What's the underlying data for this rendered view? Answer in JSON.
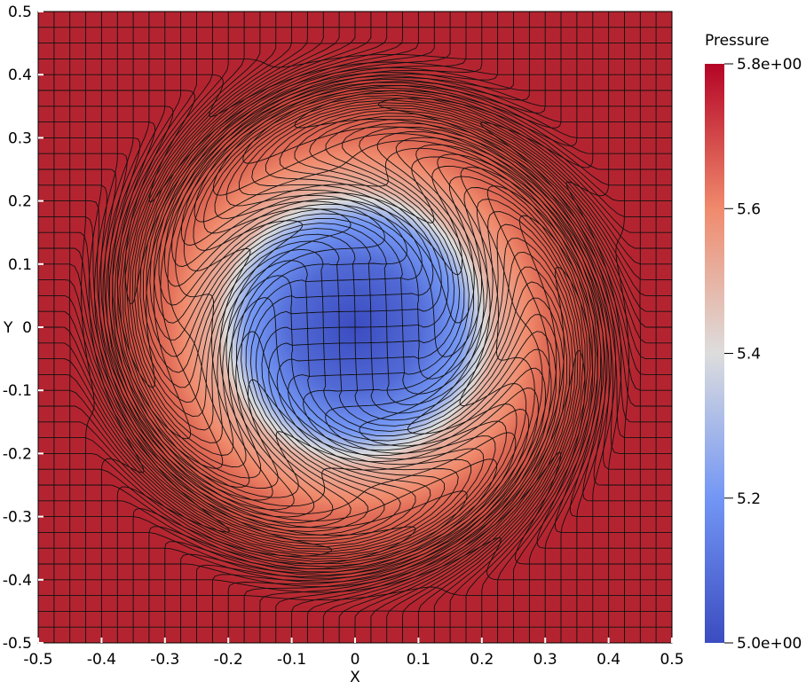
{
  "chart_data": {
    "type": "heatmap",
    "plot_kind": "pseudocolor mesh with deformed grid lines",
    "field": "Pressure",
    "xlabel": "X",
    "ylabel": "Y",
    "xlim": [
      -0.5,
      0.5
    ],
    "ylim": [
      -0.5,
      0.5
    ],
    "xticks": [
      -0.5,
      -0.4,
      -0.3,
      -0.2,
      -0.1,
      0,
      0.1,
      0.2,
      0.3,
      0.4,
      0.5
    ],
    "yticks": [
      0.5,
      0.4,
      0.3,
      0.2,
      0.1,
      0,
      -0.1,
      -0.2,
      -0.3,
      -0.4,
      -0.5
    ],
    "xtick_labels": [
      "-0.5",
      "-0.4",
      "-0.3",
      "-0.2",
      "-0.1",
      "0",
      "0.1",
      "0.2",
      "0.3",
      "0.4",
      "0.5"
    ],
    "ytick_labels": [
      "0.5",
      "0.4",
      "0.3",
      "0.2",
      "0.1",
      "0",
      "-0.1",
      "-0.2",
      "-0.3",
      "-0.4",
      "-0.5"
    ],
    "colorbar": {
      "title": "Pressure",
      "min": 5.0,
      "max": 5.8,
      "ticks": [
        5.8,
        5.6,
        5.4,
        5.2,
        5.0
      ],
      "tick_labels": [
        "5.8e+00",
        "5.6",
        "5.4",
        "5.2",
        "5.0e+00"
      ],
      "colormap": "cool to warm",
      "low_color": "#3b4cc0",
      "mid_color": "#dddddd",
      "high_color": "#b40426"
    },
    "grid_cells": 40,
    "vortex": {
      "center": [
        0.0,
        0.0
      ],
      "core_radius": 0.18,
      "outer_radius": 0.42,
      "twist_radians": 4.0,
      "rotation": "counter-clockwise swirl"
    },
    "pressure_profile": [
      {
        "radius": 0.0,
        "value": 5.0
      },
      {
        "radius": 0.1,
        "value": 5.08
      },
      {
        "radius": 0.17,
        "value": 5.22
      },
      {
        "radius": 0.22,
        "value": 5.5
      },
      {
        "radius": 0.3,
        "value": 5.65
      },
      {
        "radius": 0.4,
        "value": 5.75
      },
      {
        "radius": 0.45,
        "value": 5.8
      }
    ]
  }
}
